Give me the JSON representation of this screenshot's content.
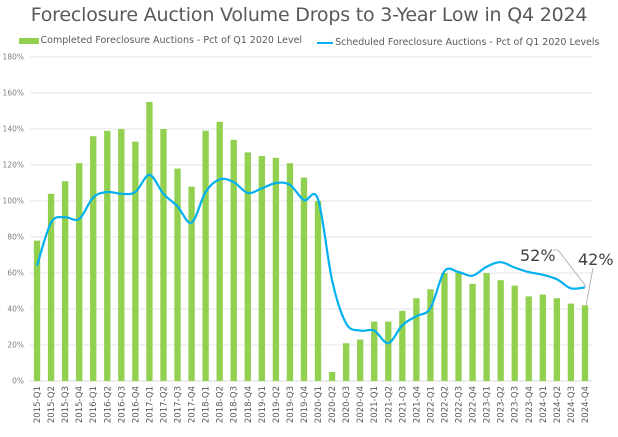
{
  "chart_data": {
    "type": "bar",
    "title": "Foreclosure Auction Volume Drops to 3-Year Low in Q4 2024",
    "xlabel": "",
    "ylabel": "",
    "ylim": [
      0,
      180
    ],
    "yticks": [
      0,
      20,
      40,
      60,
      80,
      100,
      120,
      140,
      160,
      180
    ],
    "ytick_labels": [
      "0%",
      "20%",
      "40%",
      "60%",
      "80%",
      "100%",
      "120%",
      "140%",
      "160%",
      "180%"
    ],
    "grid": true,
    "legend_position": "top-center",
    "categories": [
      "2015-Q1",
      "2015-Q2",
      "2015-Q3",
      "2015-Q4",
      "2016-Q1",
      "2016-Q2",
      "2016-Q3",
      "2016-Q4",
      "2017-Q1",
      "2017-Q2",
      "2017-Q3",
      "2017-Q4",
      "2018-Q1",
      "2018-Q2",
      "2018-Q3",
      "2018-Q4",
      "2019-Q1",
      "2019-Q2",
      "2019-Q3",
      "2019-Q4",
      "2020-Q1",
      "2020-Q2",
      "2020-Q3",
      "2020-Q4",
      "2021-Q1",
      "2021-Q2",
      "2021-Q3",
      "2021-Q4",
      "2022-Q1",
      "2022-Q2",
      "2022-Q3",
      "2022-Q4",
      "2023-Q1",
      "2023-Q2",
      "2023-Q3",
      "2023-Q4",
      "2024-Q1",
      "2024-Q2",
      "2024-Q3",
      "2024-Q4"
    ],
    "series": [
      {
        "name": "Completed Foreclosure Auctions - Pct of Q1 2020 Level",
        "type": "bar",
        "color": "#92d050",
        "values": [
          78,
          104,
          111,
          121,
          136,
          139,
          140,
          133,
          155,
          140,
          118,
          108,
          139,
          144,
          134,
          127,
          125,
          124,
          121,
          113,
          100,
          5,
          21,
          23,
          33,
          33,
          39,
          46,
          51,
          60,
          60,
          54,
          60,
          56,
          53,
          47,
          48,
          46,
          43,
          42
        ]
      },
      {
        "name": "Scheduled Foreclosure Auctions - Pct of Q1 2020 Levels",
        "type": "line",
        "smooth": true,
        "color": "#00b0f0",
        "values": [
          64,
          88,
          91,
          90,
          102,
          105,
          104,
          105,
          114.5,
          104,
          97,
          88,
          105,
          112,
          110.5,
          104.5,
          107,
          110,
          109,
          100.5,
          101,
          56,
          32,
          28,
          28,
          21,
          31,
          36,
          40.5,
          61,
          60.5,
          58.5,
          63.5,
          66,
          63,
          60.5,
          59,
          56.5,
          51.5,
          52
        ]
      }
    ],
    "annotations": [
      {
        "text": "52%",
        "series": 1,
        "category": "2024-Q4"
      },
      {
        "text": "42%",
        "series": 0,
        "category": "2024-Q4"
      }
    ]
  }
}
